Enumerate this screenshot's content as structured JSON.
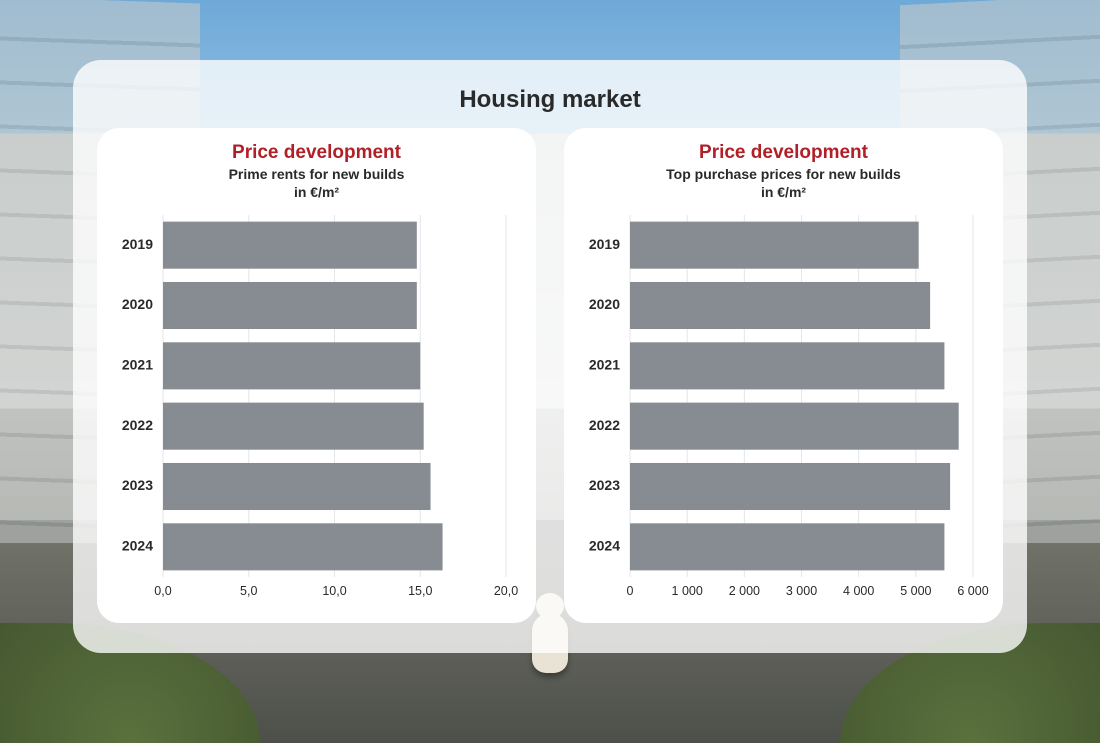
{
  "page_title": "Housing market",
  "title_color": "#b11f27",
  "bar_color": "#868c91",
  "grid_color": "#e4e6e8",
  "axis_text_color": "#2a2a2a",
  "panel_bg": "rgba(255,255,255,0.78)",
  "card_bg": "#ffffff",
  "chart_left": {
    "type": "bar-horizontal",
    "title": "Price development",
    "subtitle": "Prime rents for new builds",
    "unit": "in €/m²",
    "categories": [
      "2019",
      "2020",
      "2021",
      "2022",
      "2023",
      "2024"
    ],
    "values": [
      14.8,
      14.8,
      15.0,
      15.2,
      15.6,
      16.3
    ],
    "xmin": 0.0,
    "xmax": 20.0,
    "xtick_step": 5.0,
    "xtick_labels": [
      "0,0",
      "5,0",
      "10,0",
      "15,0",
      "20,0"
    ],
    "title_fontsize": 19,
    "label_fontsize": 14,
    "tick_fontsize": 12.5,
    "bar_height_ratio": 0.78
  },
  "chart_right": {
    "type": "bar-horizontal",
    "title": "Price development",
    "subtitle": "Top purchase prices for new builds",
    "unit": "in €/m²",
    "categories": [
      "2019",
      "2020",
      "2021",
      "2022",
      "2023",
      "2024"
    ],
    "values": [
      5050,
      5250,
      5500,
      5750,
      5600,
      5500
    ],
    "xmin": 0,
    "xmax": 6000,
    "xtick_step": 1000,
    "xtick_labels": [
      "0",
      "1 000",
      "2 000",
      "3 000",
      "4 000",
      "5 000",
      "6 000"
    ],
    "title_fontsize": 19,
    "label_fontsize": 14,
    "tick_fontsize": 12.5,
    "bar_height_ratio": 0.78
  }
}
